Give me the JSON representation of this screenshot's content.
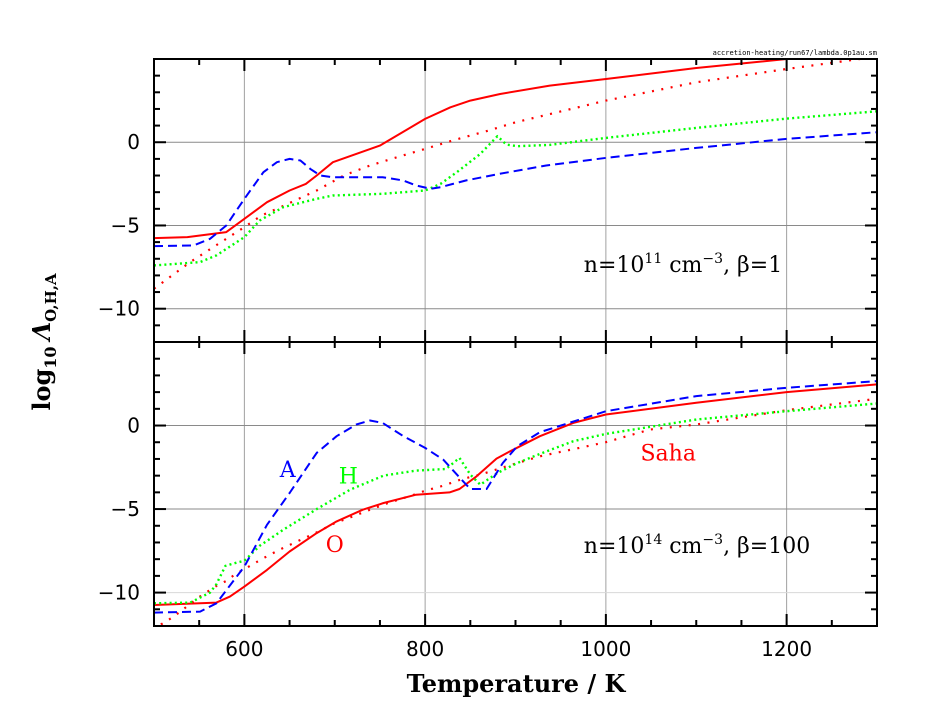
{
  "filename_label": "accretion-heating/run67/lambda.0p1au.sm",
  "x_axis_title": "Temperature / K",
  "y_axis_title": {
    "prefix": "log",
    "sub1": "10",
    "symbol": "Λ",
    "sub2": "O,H,A"
  },
  "colors": {
    "O": "#ff0000",
    "Saha": "#ff0000",
    "H": "#00ff00",
    "A": "#0000ff"
  },
  "chart_data": [
    {
      "type": "line",
      "panel": "top",
      "note": {
        "n_base": "n=10",
        "n_exp": "11",
        "unit": " cm",
        "unit_exp": "−3",
        "beta": ",  β=1"
      },
      "xlim": [
        500,
        1300
      ],
      "ylim": [
        -12,
        5
      ],
      "xticks": [
        600,
        800,
        1000,
        1200
      ],
      "yticks": [
        0,
        -5,
        -10
      ],
      "ytick_labels": [
        "0",
        "−5",
        "−10"
      ],
      "grid": true,
      "series": [
        {
          "key": "O",
          "style": "solid",
          "x": [
            500,
            537,
            580,
            600,
            625,
            650,
            668,
            680,
            698,
            750,
            800,
            828,
            850,
            883,
            938,
            1000,
            1100,
            1200,
            1300
          ],
          "y": [
            -5.76,
            -5.7,
            -5.4,
            -4.6,
            -3.6,
            -2.9,
            -2.5,
            -2.0,
            -1.2,
            -0.2,
            1.4,
            2.1,
            2.5,
            2.9,
            3.4,
            3.8,
            4.46,
            5.0,
            5.4
          ]
        },
        {
          "key": "Saha",
          "style": "sparse-dotted",
          "x": [
            500,
            510,
            520,
            540,
            560,
            580,
            600,
            619,
            640,
            660,
            680,
            710,
            739,
            769,
            800,
            830,
            870,
            900,
            931,
            1000,
            1100,
            1200,
            1281,
            1300
          ],
          "y": [
            -8.8,
            -8.4,
            -8.0,
            -7.2,
            -6.5,
            -5.8,
            -5.1,
            -4.4,
            -3.9,
            -3.4,
            -2.9,
            -2.0,
            -1.4,
            -0.9,
            -0.4,
            0.1,
            0.7,
            1.2,
            1.6,
            2.5,
            3.6,
            4.4,
            5.0,
            5.1
          ]
        },
        {
          "key": "H",
          "style": "dotted",
          "x": [
            500,
            551,
            569,
            600,
            617,
            643,
            680,
            698,
            753,
            800,
            817,
            835,
            861,
            880,
            890,
            902,
            938,
            1000,
            1100,
            1200,
            1300
          ],
          "y": [
            -7.4,
            -7.2,
            -6.8,
            -5.7,
            -4.7,
            -3.9,
            -3.4,
            -3.2,
            -3.1,
            -2.9,
            -2.5,
            -1.8,
            -0.7,
            0.36,
            -0.14,
            -0.24,
            -0.16,
            0.26,
            0.86,
            1.42,
            1.86
          ]
        },
        {
          "key": "A",
          "style": "dashed",
          "x": [
            500,
            544,
            562,
            580,
            600,
            621,
            636,
            650,
            662,
            673,
            684,
            698,
            753,
            776,
            790,
            806,
            817,
            845,
            882,
            934,
            1000,
            1100,
            1200,
            1300
          ],
          "y": [
            -6.24,
            -6.2,
            -5.8,
            -5.0,
            -3.4,
            -1.8,
            -1.2,
            -1.0,
            -1.1,
            -1.6,
            -2.0,
            -2.1,
            -2.1,
            -2.3,
            -2.6,
            -2.8,
            -2.7,
            -2.3,
            -1.9,
            -1.4,
            -0.94,
            -0.34,
            0.2,
            0.6
          ]
        }
      ],
      "annotations": []
    },
    {
      "type": "line",
      "panel": "bottom",
      "note": {
        "n_base": "n=10",
        "n_exp": "14",
        "unit": " cm",
        "unit_exp": "−3",
        "beta": ",  β=100"
      },
      "xlim": [
        500,
        1300
      ],
      "ylim": [
        -12,
        5
      ],
      "xticks": [
        600,
        800,
        1000,
        1200
      ],
      "xtick_labels": [
        "600",
        "800",
        "1000",
        "1200"
      ],
      "yticks": [
        0,
        -5,
        -10
      ],
      "ytick_labels": [
        "0",
        "−5",
        "−10"
      ],
      "grid": true,
      "series": [
        {
          "key": "O",
          "style": "solid",
          "x": [
            500,
            569,
            584,
            600,
            625,
            650,
            680,
            702,
            731,
            754,
            790,
            827,
            838,
            857,
            879,
            894,
            927,
            964,
            1000,
            1100,
            1200,
            1300
          ],
          "y": [
            -10.74,
            -10.6,
            -10.24,
            -9.64,
            -8.64,
            -7.54,
            -6.44,
            -5.74,
            -5.04,
            -4.64,
            -4.14,
            -4.0,
            -3.8,
            -3.04,
            -1.98,
            -1.54,
            -0.64,
            0.16,
            0.66,
            1.36,
            2.0,
            2.46
          ]
        },
        {
          "key": "Saha",
          "style": "sparse-dotted",
          "x": [
            500,
            508,
            520,
            530,
            549,
            569,
            580,
            590,
            600,
            619,
            640,
            660,
            680,
            700,
            720,
            739,
            759,
            790,
            800,
            820,
            841,
            861,
            890,
            927,
            1000,
            1049,
            1100,
            1200,
            1300
          ],
          "y": [
            -12.3,
            -11.9,
            -11.5,
            -11.1,
            -10.3,
            -9.6,
            -9.3,
            -8.9,
            -8.6,
            -8.0,
            -7.4,
            -6.9,
            -6.4,
            -5.84,
            -5.44,
            -5.04,
            -4.64,
            -4.1,
            -3.9,
            -3.6,
            -3.2,
            -2.94,
            -2.44,
            -1.84,
            -1.0,
            -0.24,
            0.06,
            0.92,
            1.6
          ]
        },
        {
          "key": "H",
          "style": "dotted",
          "x": [
            500,
            540,
            562,
            569,
            579,
            592,
            600,
            617,
            643,
            680,
            717,
            754,
            790,
            823,
            838,
            850,
            861,
            880,
            902,
            927,
            964,
            1000,
            1100,
            1200,
            1300
          ],
          "y": [
            -10.64,
            -10.6,
            -10.0,
            -9.5,
            -8.4,
            -8.2,
            -8.1,
            -7.2,
            -6.24,
            -5.0,
            -3.84,
            -3.0,
            -2.7,
            -2.6,
            -1.94,
            -2.94,
            -3.54,
            -2.84,
            -2.24,
            -1.7,
            -0.94,
            -0.5,
            0.36,
            0.86,
            1.32
          ]
        },
        {
          "key": "A",
          "style": "dashed",
          "x": [
            500,
            551,
            569,
            600,
            625,
            650,
            680,
            702,
            724,
            739,
            753,
            776,
            800,
            820,
            842,
            850,
            868,
            886,
            902,
            927,
            1000,
            1100,
            1200,
            1300
          ],
          "y": [
            -11.2,
            -11.14,
            -10.64,
            -8.44,
            -5.94,
            -4.04,
            -1.64,
            -0.64,
            0.06,
            0.3,
            0.16,
            -0.64,
            -1.34,
            -2.04,
            -3.34,
            -3.8,
            -3.8,
            -2.24,
            -1.24,
            -0.4,
            0.86,
            1.76,
            2.26,
            2.66
          ]
        }
      ],
      "annotations": [
        {
          "text": "A",
          "key": "A",
          "x": 648,
          "y": -2.6
        },
        {
          "text": "H",
          "key": "H",
          "x": 715,
          "y": -3.0
        },
        {
          "text": "O",
          "key": "O",
          "x": 700,
          "y": -7.1
        },
        {
          "text": "Saha",
          "key": "Saha",
          "x": 1069,
          "y": -1.6
        }
      ]
    }
  ]
}
